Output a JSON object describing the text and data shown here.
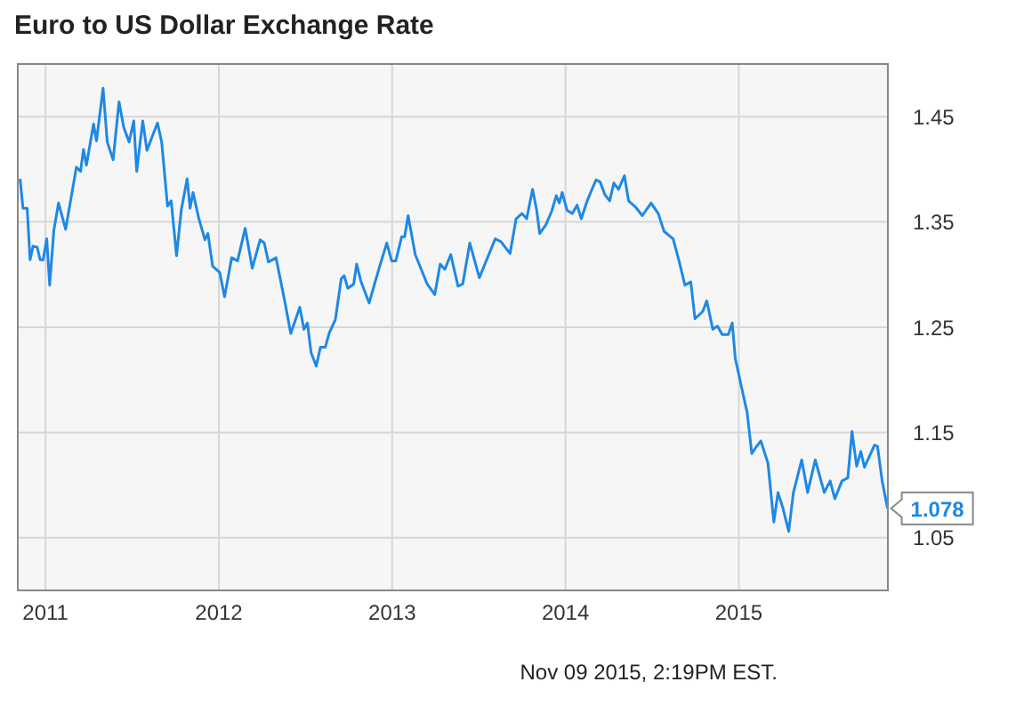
{
  "chart_data": {
    "type": "line",
    "title": "Euro to US Dollar Exchange Rate",
    "annotations": [
      "Nov 09 2015, 2:19PM EST."
    ],
    "xlim": [
      2010.84,
      2015.86
    ],
    "xticks": [
      2011,
      2012,
      2013,
      2014,
      2015
    ],
    "ylim": [
      1.0,
      1.5
    ],
    "yticks": [
      1.05,
      1.15,
      1.25,
      1.35,
      1.45
    ],
    "grid": true,
    "legend": false,
    "x": [
      2010.853,
      2010.87,
      2010.894,
      2010.911,
      2010.928,
      2010.952,
      2010.969,
      2010.986,
      2011.007,
      2011.024,
      2011.048,
      2011.075,
      2011.116,
      2011.178,
      2011.202,
      2011.219,
      2011.236,
      2011.277,
      2011.294,
      2011.332,
      2011.356,
      2011.39,
      2011.424,
      2011.451,
      2011.482,
      2011.509,
      2011.526,
      2011.561,
      2011.585,
      2011.646,
      2011.67,
      2011.704,
      2011.725,
      2011.756,
      2011.783,
      2011.817,
      2011.834,
      2011.851,
      2011.885,
      2011.92,
      2011.937,
      2011.964,
      2012.005,
      2012.033,
      2012.074,
      2012.108,
      2012.152,
      2012.193,
      2012.238,
      2012.262,
      2012.286,
      2012.33,
      2012.381,
      2012.415,
      2012.467,
      2012.491,
      2012.511,
      2012.532,
      2012.562,
      2012.586,
      2012.614,
      2012.638,
      2012.672,
      2012.706,
      2012.723,
      2012.744,
      2012.778,
      2012.795,
      2012.819,
      2012.867,
      2012.928,
      2012.969,
      2012.997,
      2013.021,
      2013.055,
      2013.072,
      2013.092,
      2013.133,
      2013.202,
      2013.246,
      2013.277,
      2013.304,
      2013.338,
      2013.38,
      2013.407,
      2013.448,
      2013.503,
      2013.55,
      2013.595,
      2013.629,
      2013.68,
      2013.715,
      2013.749,
      2013.776,
      2013.81,
      2013.834,
      2013.851,
      2013.886,
      2013.92,
      2013.947,
      2013.964,
      2013.981,
      2014.009,
      2014.039,
      2014.067,
      2014.091,
      2014.125,
      2014.176,
      2014.2,
      2014.227,
      2014.255,
      2014.279,
      2014.306,
      2014.34,
      2014.364,
      2014.405,
      2014.443,
      2014.494,
      2014.535,
      2014.569,
      2014.621,
      2014.655,
      2014.689,
      2014.723,
      2014.747,
      2014.792,
      2014.815,
      2014.85,
      2014.877,
      2014.904,
      2014.939,
      2014.962,
      2014.98,
      2015.021,
      2015.048,
      2015.075,
      2015.099,
      2015.127,
      2015.168,
      2015.202,
      2015.226,
      2015.253,
      2015.288,
      2015.315,
      2015.363,
      2015.397,
      2015.441,
      2015.493,
      2015.527,
      2015.554,
      2015.595,
      2015.629,
      2015.653,
      2015.68,
      2015.704,
      2015.725,
      2015.783,
      2015.8,
      2015.827,
      2015.858
    ],
    "series": [
      {
        "color": "#1e88e5",
        "values": [
          1.391,
          1.363,
          1.363,
          1.314,
          1.327,
          1.326,
          1.314,
          1.314,
          1.334,
          1.29,
          1.342,
          1.368,
          1.343,
          1.402,
          1.398,
          1.419,
          1.404,
          1.443,
          1.427,
          1.477,
          1.426,
          1.409,
          1.464,
          1.44,
          1.426,
          1.446,
          1.398,
          1.446,
          1.418,
          1.444,
          1.426,
          1.365,
          1.37,
          1.318,
          1.361,
          1.391,
          1.363,
          1.378,
          1.353,
          1.333,
          1.339,
          1.308,
          1.302,
          1.279,
          1.316,
          1.313,
          1.344,
          1.306,
          1.333,
          1.33,
          1.312,
          1.316,
          1.274,
          1.244,
          1.269,
          1.248,
          1.254,
          1.226,
          1.213,
          1.231,
          1.231,
          1.245,
          1.257,
          1.296,
          1.299,
          1.287,
          1.291,
          1.31,
          1.294,
          1.273,
          1.308,
          1.33,
          1.313,
          1.313,
          1.336,
          1.336,
          1.356,
          1.319,
          1.291,
          1.281,
          1.31,
          1.305,
          1.319,
          1.289,
          1.291,
          1.33,
          1.297,
          1.316,
          1.334,
          1.331,
          1.32,
          1.353,
          1.358,
          1.353,
          1.381,
          1.361,
          1.339,
          1.347,
          1.36,
          1.375,
          1.368,
          1.378,
          1.361,
          1.358,
          1.366,
          1.353,
          1.37,
          1.39,
          1.388,
          1.376,
          1.37,
          1.387,
          1.381,
          1.394,
          1.37,
          1.364,
          1.356,
          1.368,
          1.358,
          1.341,
          1.334,
          1.313,
          1.29,
          1.293,
          1.258,
          1.265,
          1.275,
          1.248,
          1.251,
          1.243,
          1.243,
          1.254,
          1.22,
          1.189,
          1.169,
          1.13,
          1.136,
          1.142,
          1.121,
          1.065,
          1.093,
          1.079,
          1.056,
          1.093,
          1.124,
          1.093,
          1.124,
          1.093,
          1.104,
          1.087,
          1.104,
          1.107,
          1.151,
          1.118,
          1.132,
          1.117,
          1.138,
          1.137,
          1.104,
          1.078
        ],
        "value_labels": [
          null,
          null,
          null,
          null,
          null,
          null,
          null,
          null,
          null,
          null,
          null,
          null,
          null,
          null,
          null,
          null,
          null,
          null,
          null,
          null,
          null,
          null,
          null,
          null,
          null,
          null,
          null,
          null,
          null,
          null,
          null,
          null,
          null,
          null,
          null,
          null,
          null,
          null,
          null,
          null,
          null,
          null,
          null,
          null,
          null,
          null,
          null,
          null,
          null,
          null,
          null,
          null,
          null,
          null,
          null,
          null,
          null,
          null,
          null,
          null,
          null,
          null,
          null,
          null,
          null,
          null,
          null,
          null,
          null,
          null,
          null,
          null,
          null,
          null,
          null,
          null,
          null,
          null,
          null,
          null,
          null,
          null,
          null,
          null,
          null,
          null,
          null,
          null,
          null,
          null,
          null,
          null,
          null,
          null,
          null,
          null,
          null,
          null,
          null,
          null,
          null,
          null,
          null,
          null,
          null,
          null,
          null,
          null,
          null,
          null,
          null,
          null,
          null,
          null,
          null,
          null,
          null,
          null,
          null,
          null,
          null,
          null,
          null,
          null,
          null,
          null,
          null,
          null,
          null,
          null,
          null,
          null,
          null,
          null,
          null,
          null,
          null,
          null,
          null,
          null,
          null,
          null,
          null,
          null,
          null,
          null,
          null,
          null,
          null,
          null,
          null,
          null,
          null,
          null,
          null,
          null,
          null,
          null,
          null,
          "1.078"
        ]
      }
    ]
  }
}
